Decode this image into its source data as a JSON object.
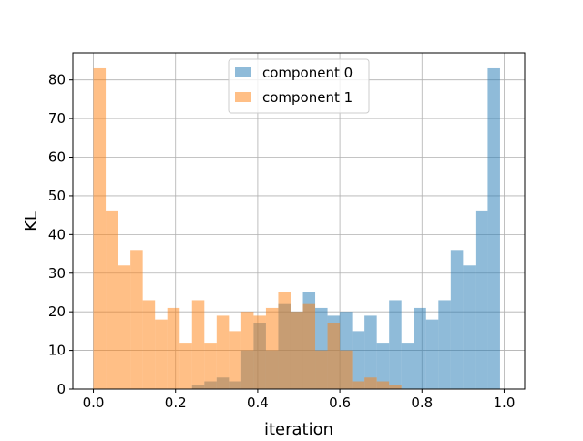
{
  "chart_data": {
    "type": "bar",
    "title": "",
    "xlabel": "iteration",
    "ylabel": "KL",
    "xlim": [
      -0.05,
      1.05
    ],
    "ylim": [
      0,
      87
    ],
    "xticks": [
      0.0,
      0.2,
      0.4,
      0.6,
      0.8,
      1.0
    ],
    "xtick_labels": [
      "0.0",
      "0.2",
      "0.4",
      "0.6",
      "0.8",
      "1.0"
    ],
    "yticks": [
      0,
      10,
      20,
      30,
      40,
      50,
      60,
      70,
      80
    ],
    "ytick_labels": [
      "0",
      "10",
      "20",
      "30",
      "40",
      "50",
      "60",
      "70",
      "80"
    ],
    "grid": true,
    "legend_position": "top-center",
    "bin_edges": [
      0.0,
      0.03,
      0.06,
      0.09,
      0.12,
      0.15,
      0.18,
      0.21,
      0.24,
      0.27,
      0.3,
      0.33,
      0.36,
      0.39,
      0.42,
      0.45,
      0.48,
      0.51,
      0.54,
      0.57,
      0.6,
      0.63,
      0.66,
      0.69,
      0.72,
      0.75,
      0.78,
      0.81,
      0.84,
      0.87,
      0.9,
      0.93,
      0.96,
      0.99
    ],
    "series": [
      {
        "name": "component 0",
        "color": "#1f77b4",
        "alpha": 0.5,
        "values": [
          0,
          0,
          0,
          0,
          0,
          0,
          0,
          0,
          1,
          2,
          3,
          2,
          10,
          17,
          10,
          22,
          20,
          25,
          21,
          19,
          20,
          15,
          19,
          12,
          23,
          12,
          21,
          18,
          23,
          36,
          32,
          46,
          83
        ]
      },
      {
        "name": "component 1",
        "color": "#ff7f0e",
        "alpha": 0.5,
        "values": [
          83,
          46,
          32,
          36,
          23,
          18,
          21,
          12,
          23,
          12,
          19,
          15,
          20,
          19,
          21,
          25,
          20,
          22,
          10,
          17,
          10,
          2,
          3,
          2,
          1,
          0,
          0,
          0,
          0,
          0,
          0,
          0,
          0
        ]
      }
    ]
  }
}
